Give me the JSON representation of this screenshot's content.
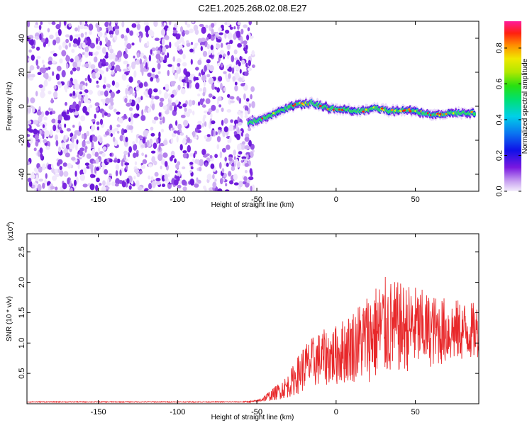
{
  "title": "C2E1.2025.268.02.08.E27",
  "chart_data": [
    {
      "type": "heatmap",
      "name": "spectrogram",
      "xlabel": "Height of straight line (km)",
      "ylabel": "Frequency (Hz)",
      "xlim": [
        -195,
        90
      ],
      "ylim": [
        -50,
        50
      ],
      "xticks": [
        -150,
        -100,
        -50,
        0,
        50
      ],
      "yticks": [
        -40,
        -20,
        0,
        20,
        40
      ],
      "noise_region_x": [
        -195,
        -52
      ],
      "signal_trace": {
        "x": [
          -55,
          -45,
          -35,
          -25,
          -15,
          -5,
          5,
          15,
          25,
          35,
          45,
          55,
          65,
          75,
          88
        ],
        "freq": [
          -10,
          -7,
          -3,
          1,
          2,
          -1,
          -2,
          -3,
          -1,
          -3,
          -2,
          -4,
          -5,
          -4,
          -4
        ]
      },
      "colorbar": {
        "label": "Normalized spectral amplitude",
        "ticks": [
          0.0,
          0.2,
          0.4,
          0.6,
          0.8
        ],
        "range": [
          0,
          0.95
        ]
      }
    },
    {
      "type": "line",
      "name": "snr",
      "xlabel": "Height of straight line (km)",
      "ylabel": "SNR (10 * v/v)",
      "yscale_label": "(x10",
      "yscale_exp": "4",
      "yscale_close": ")",
      "xlim": [
        -195,
        90
      ],
      "ylim": [
        0,
        2.8
      ],
      "xticks": [
        -150,
        -100,
        -50,
        0,
        50
      ],
      "yticks": [
        0.5,
        1.0,
        1.5,
        2.0,
        2.5
      ],
      "ytick_labels": [
        "0.5",
        "1.0",
        "1.5",
        "2.0",
        "2.5"
      ],
      "color": "#e8282a",
      "envelope": {
        "x": [
          -195,
          -60,
          -50,
          -40,
          -30,
          -20,
          -10,
          0,
          10,
          20,
          30,
          40,
          50,
          60,
          70,
          80,
          90
        ],
        "mean": [
          0.03,
          0.03,
          0.04,
          0.15,
          0.3,
          0.6,
          0.75,
          0.8,
          0.95,
          1.1,
          1.25,
          1.25,
          1.25,
          1.2,
          1.2,
          1.2,
          1.2
        ],
        "spread": [
          0.008,
          0.008,
          0.02,
          0.1,
          0.2,
          0.4,
          0.45,
          0.5,
          0.6,
          0.75,
          0.85,
          0.75,
          0.7,
          0.6,
          0.55,
          0.5,
          0.45
        ]
      }
    }
  ]
}
